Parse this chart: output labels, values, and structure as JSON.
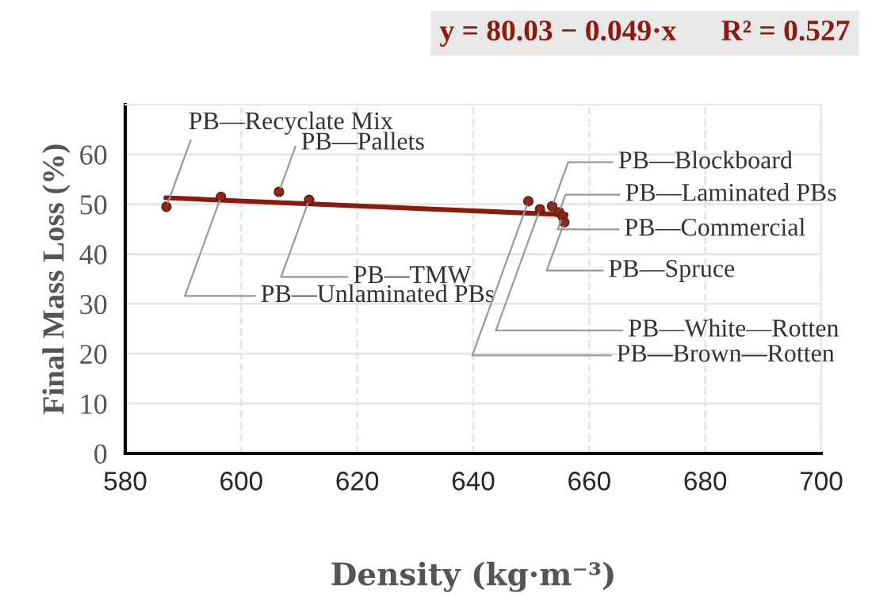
{
  "chart_data": {
    "type": "scatter",
    "xlabel": "Density (kg·m⁻³)",
    "ylabel": "Final Mass Loss (%)",
    "xlim": [
      580,
      700
    ],
    "xticks": [
      580,
      600,
      620,
      640,
      660,
      680,
      700
    ],
    "ylim": [
      0,
      70
    ],
    "yticks": [
      0,
      10,
      20,
      30,
      40,
      50,
      60
    ],
    "grid": true,
    "legend": false,
    "series": [
      {
        "color": "#8b2a1a",
        "marker": "circle",
        "x": [
          587.1,
          596.5,
          606.5,
          611.7,
          649.5,
          651.5,
          653.6,
          654.8,
          655.4,
          655.7
        ],
        "values": [
          49.5,
          51.5,
          52.5,
          50.9,
          50.6,
          49.0,
          49.6,
          48.4,
          47.6,
          46.4
        ]
      },
      {
        "type": "line",
        "color": "#8b1a10",
        "marker": "none",
        "line_style": "solid",
        "x": [
          587,
          656
        ],
        "values": [
          51.3,
          47.9
        ]
      }
    ],
    "annotations": [
      {
        "text": "PB—Recyclate Mix",
        "x": 587.1,
        "y": 49.5
      },
      {
        "text": "PB—Unlaminated PBs",
        "x": 596.5,
        "y": 51.5
      },
      {
        "text": "PB—Pallets",
        "x": 606.5,
        "y": 52.5
      },
      {
        "text": "PB—TMW",
        "x": 611.7,
        "y": 50.9
      },
      {
        "text": "PB—Brown—Rotten",
        "x": 649.5,
        "y": 50.6
      },
      {
        "text": "PB—White—Rotten",
        "x": 651.5,
        "y": 49.0
      },
      {
        "text": "PB—Blockboard",
        "x": 653.6,
        "y": 49.6
      },
      {
        "text": "PB—Laminated PBs",
        "x": 654.8,
        "y": 48.4
      },
      {
        "text": "PB—Commercial",
        "x": 655.4,
        "y": 47.6
      },
      {
        "text": "PB—Spruce",
        "x": 655.7,
        "y": 46.4
      },
      "y = 80.03 − 0.049·x      R² = 0.527"
    ]
  }
}
